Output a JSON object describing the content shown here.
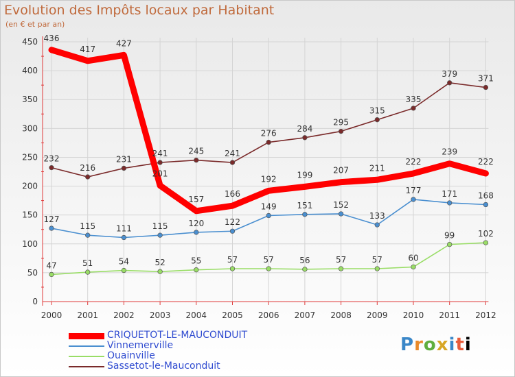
{
  "header": {
    "title": "Evolution des Impôts locaux par Habitant",
    "subtitle": "(en € et par an)"
  },
  "logo": {
    "text": "Proxiti",
    "letters": [
      "P",
      "r",
      "o",
      "x",
      "i",
      "t",
      "i"
    ]
  },
  "chart_data": {
    "type": "line",
    "title": "Evolution des Impôts locaux par Habitant",
    "subtitle": "(en € et par an)",
    "xlabel": "",
    "ylabel": "",
    "x": [
      "2000",
      "2001",
      "2002",
      "2003",
      "2004",
      "2005",
      "2006",
      "2007",
      "2008",
      "2009",
      "2010",
      "2011",
      "2012"
    ],
    "ylim": [
      0,
      450
    ],
    "yticks": [
      0,
      50,
      100,
      150,
      200,
      250,
      300,
      350,
      400,
      450
    ],
    "grid": true,
    "legend_position": "bottom-left",
    "series": [
      {
        "name": "CRIQUETOT-LE-MAUCONDUIT",
        "color": "#ff0000",
        "markers": false,
        "bold": true,
        "values": [
          436,
          417,
          427,
          201,
          157,
          166,
          192,
          199,
          207,
          211,
          222,
          239,
          222
        ]
      },
      {
        "name": "Vinnemerville",
        "color": "#4a8fd0",
        "markers": true,
        "bold": false,
        "values": [
          127,
          115,
          111,
          115,
          120,
          122,
          149,
          151,
          152,
          133,
          177,
          171,
          168
        ]
      },
      {
        "name": "Ouainville",
        "color": "#99dd66",
        "markers": true,
        "bold": false,
        "values": [
          47,
          51,
          54,
          52,
          55,
          57,
          57,
          56,
          57,
          57,
          60,
          99,
          102
        ]
      },
      {
        "name": "Sassetot-le-Mauconduit",
        "color": "#7a2a2a",
        "markers": true,
        "bold": false,
        "values": [
          232,
          216,
          231,
          241,
          245,
          241,
          276,
          284,
          295,
          315,
          335,
          379,
          371
        ]
      }
    ]
  }
}
